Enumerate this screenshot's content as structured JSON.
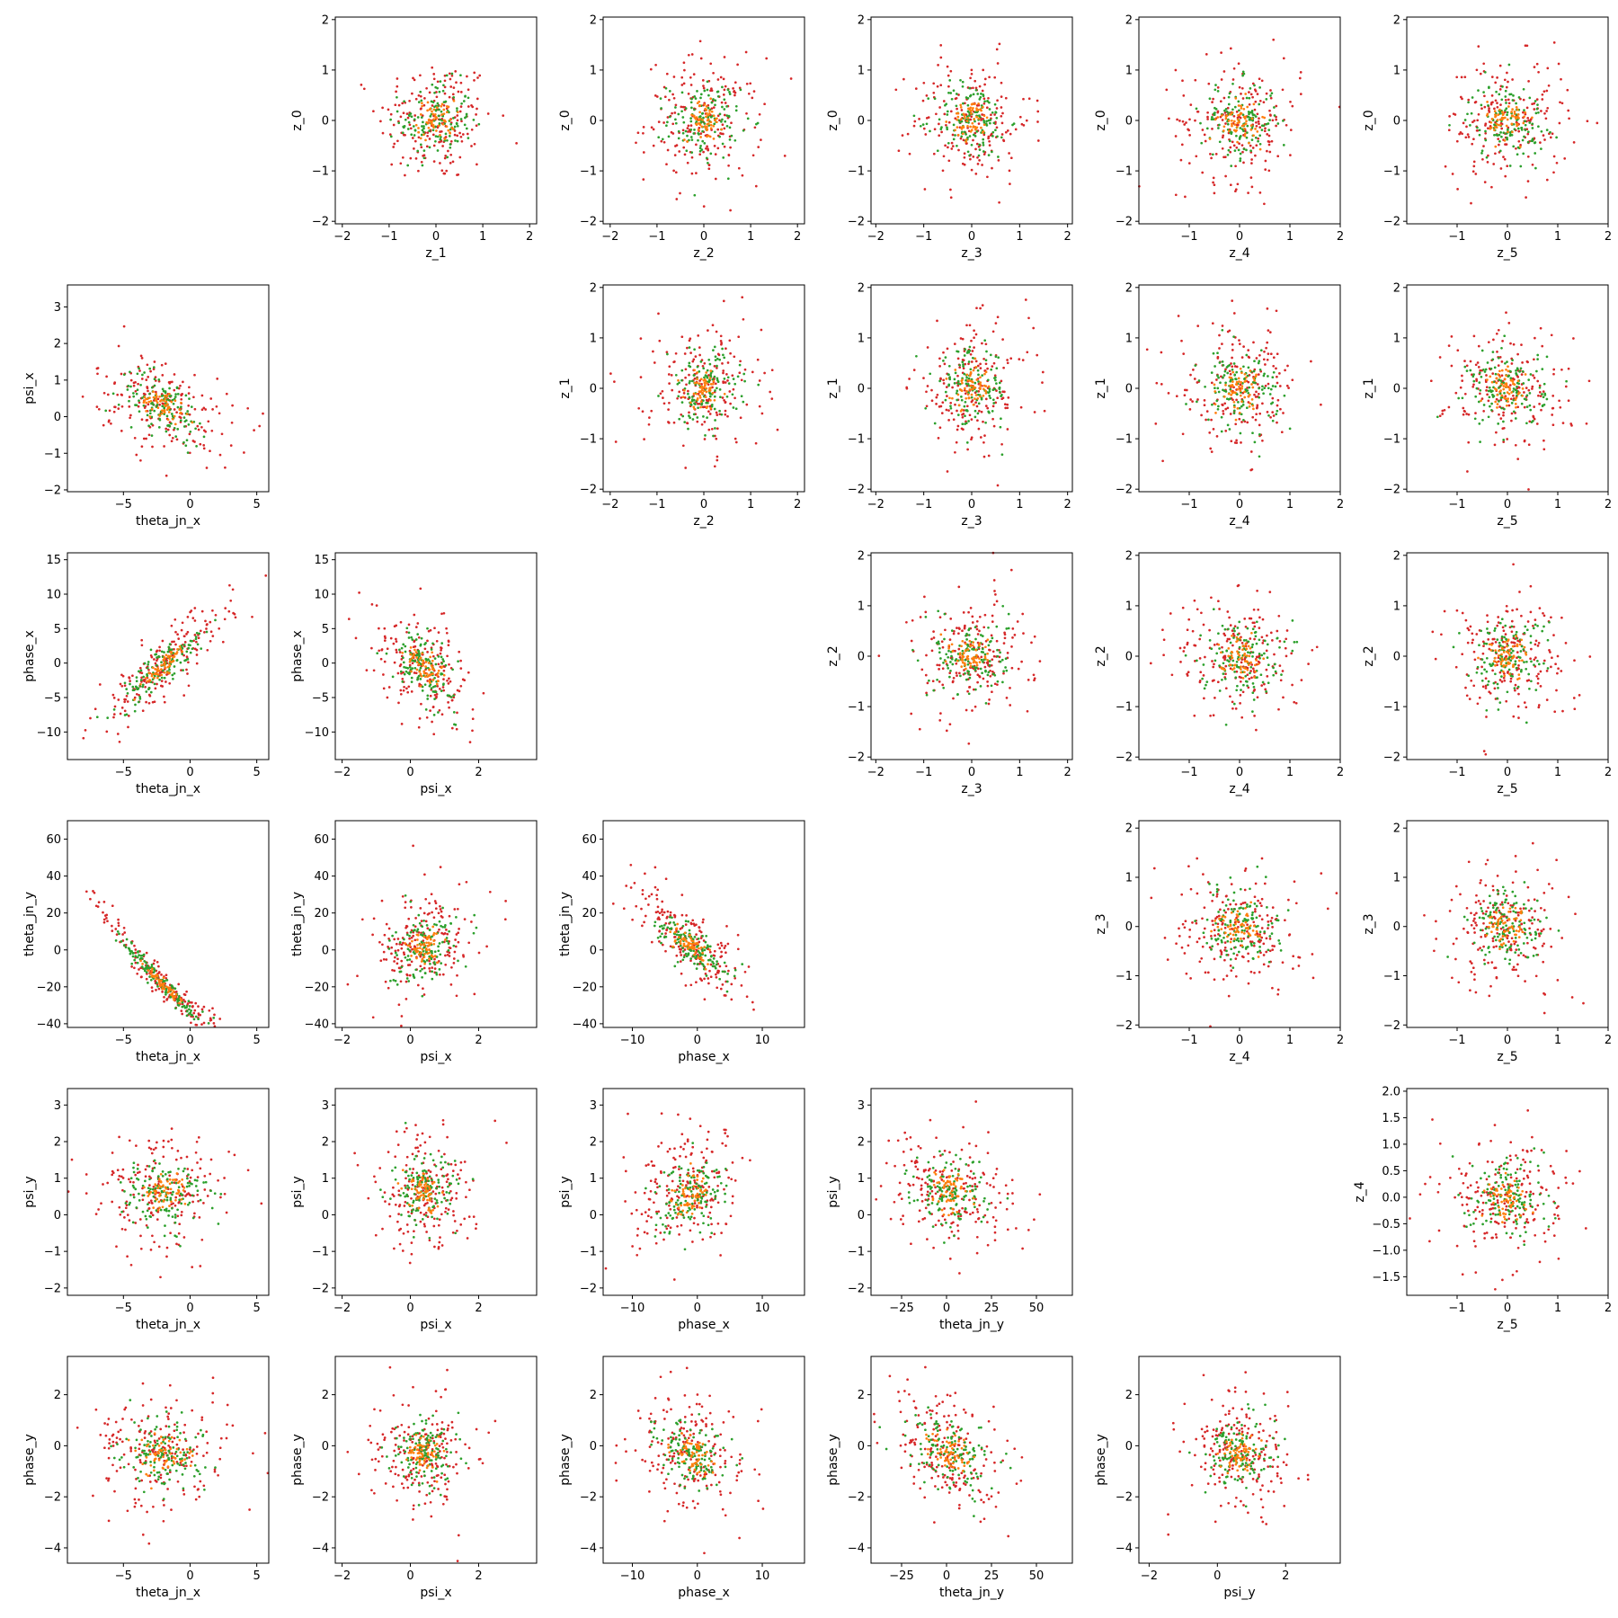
{
  "chart_data": {
    "type": "scatter",
    "layout": "corner-grid-6x6",
    "series": [
      {
        "name": "",
        "color": "#d62728",
        "n": 190,
        "spread": 1.0
      },
      {
        "name": "",
        "color": "#2ca02c",
        "n": 130,
        "spread": 0.62
      },
      {
        "name": "",
        "color": "#ff7f0e",
        "n": 60,
        "spread": 0.32
      }
    ],
    "panels": [
      {
        "row": 0,
        "col": 1,
        "xlabel": "z_1",
        "ylabel": "z_0",
        "xlim": [
          -2.15,
          2.15
        ],
        "ylim": [
          -2.05,
          2.05
        ],
        "xticks": [
          -2,
          -1,
          0,
          1,
          2
        ],
        "yticks": [
          -2,
          -1,
          0,
          1,
          2
        ],
        "pattern": "gauss"
      },
      {
        "row": 0,
        "col": 2,
        "xlabel": "z_2",
        "ylabel": "z_0",
        "xlim": [
          -2.15,
          2.15
        ],
        "ylim": [
          -2.05,
          2.05
        ],
        "xticks": [
          -2,
          -1,
          0,
          1,
          2
        ],
        "yticks": [
          -2,
          -1,
          0,
          1,
          2
        ],
        "pattern": "gauss"
      },
      {
        "row": 0,
        "col": 3,
        "xlabel": "z_3",
        "ylabel": "z_0",
        "xlim": [
          -2.1,
          2.1
        ],
        "ylim": [
          -2.05,
          2.05
        ],
        "xticks": [
          -2,
          -1,
          0,
          1,
          2
        ],
        "yticks": [
          -2,
          -1,
          0,
          1,
          2
        ],
        "pattern": "gauss"
      },
      {
        "row": 0,
        "col": 4,
        "xlabel": "z_4",
        "ylabel": "z_0",
        "xlim": [
          -2.0,
          2.0
        ],
        "ylim": [
          -2.05,
          2.05
        ],
        "xticks": [
          -1,
          0,
          1,
          2
        ],
        "yticks": [
          -2,
          -1,
          0,
          1,
          2
        ],
        "pattern": "gauss"
      },
      {
        "row": 0,
        "col": 5,
        "xlabel": "z_5",
        "ylabel": "z_0",
        "xlim": [
          -2.0,
          2.0
        ],
        "ylim": [
          -2.05,
          2.05
        ],
        "xticks": [
          -1,
          0,
          1,
          2
        ],
        "yticks": [
          -2,
          -1,
          0,
          1,
          2
        ],
        "pattern": "gauss"
      },
      {
        "row": 1,
        "col": 0,
        "xlabel": "theta_jn_x",
        "ylabel": "psi_x",
        "xlim": [
          -9.2,
          5.9
        ],
        "ylim": [
          -2.05,
          3.6
        ],
        "xticks": [
          -5,
          0,
          5
        ],
        "yticks": [
          -2,
          -1,
          0,
          1,
          2,
          3
        ],
        "pattern": "theta_psi"
      },
      {
        "row": 1,
        "col": 2,
        "xlabel": "z_2",
        "ylabel": "z_1",
        "xlim": [
          -2.15,
          2.15
        ],
        "ylim": [
          -2.05,
          2.05
        ],
        "xticks": [
          -2,
          -1,
          0,
          1,
          2
        ],
        "yticks": [
          -2,
          -1,
          0,
          1,
          2
        ],
        "pattern": "gauss"
      },
      {
        "row": 1,
        "col": 3,
        "xlabel": "z_3",
        "ylabel": "z_1",
        "xlim": [
          -2.1,
          2.1
        ],
        "ylim": [
          -2.05,
          2.05
        ],
        "xticks": [
          -2,
          -1,
          0,
          1,
          2
        ],
        "yticks": [
          -2,
          -1,
          0,
          1,
          2
        ],
        "pattern": "gauss"
      },
      {
        "row": 1,
        "col": 4,
        "xlabel": "z_4",
        "ylabel": "z_1",
        "xlim": [
          -2.0,
          2.0
        ],
        "ylim": [
          -2.05,
          2.05
        ],
        "xticks": [
          -1,
          0,
          1,
          2
        ],
        "yticks": [
          -2,
          -1,
          0,
          1,
          2
        ],
        "pattern": "gauss"
      },
      {
        "row": 1,
        "col": 5,
        "xlabel": "z_5",
        "ylabel": "z_1",
        "xlim": [
          -2.0,
          2.0
        ],
        "ylim": [
          -2.05,
          2.05
        ],
        "xticks": [
          -1,
          0,
          1,
          2
        ],
        "yticks": [
          -2,
          -1,
          0,
          1,
          2
        ],
        "pattern": "gauss"
      },
      {
        "row": 2,
        "col": 0,
        "xlabel": "theta_jn_x",
        "ylabel": "phase_x",
        "xlim": [
          -9.2,
          5.9
        ],
        "ylim": [
          -14,
          16
        ],
        "xticks": [
          -5,
          0,
          5
        ],
        "yticks": [
          -10,
          -5,
          0,
          5,
          10,
          15
        ],
        "pattern": "theta_phase"
      },
      {
        "row": 2,
        "col": 1,
        "xlabel": "psi_x",
        "ylabel": "phase_x",
        "xlim": [
          -2.2,
          3.7
        ],
        "ylim": [
          -14,
          16
        ],
        "xticks": [
          -2,
          0,
          2
        ],
        "yticks": [
          -10,
          -5,
          0,
          5,
          10,
          15
        ],
        "pattern": "psi_phase"
      },
      {
        "row": 2,
        "col": 3,
        "xlabel": "z_3",
        "ylabel": "z_2",
        "xlim": [
          -2.1,
          2.1
        ],
        "ylim": [
          -2.05,
          2.05
        ],
        "xticks": [
          -2,
          -1,
          0,
          1,
          2
        ],
        "yticks": [
          -2,
          -1,
          0,
          1,
          2
        ],
        "pattern": "gauss"
      },
      {
        "row": 2,
        "col": 4,
        "xlabel": "z_4",
        "ylabel": "z_2",
        "xlim": [
          -2.0,
          2.0
        ],
        "ylim": [
          -2.05,
          2.05
        ],
        "xticks": [
          -1,
          0,
          1,
          2
        ],
        "yticks": [
          -2,
          -1,
          0,
          1,
          2
        ],
        "pattern": "gauss"
      },
      {
        "row": 2,
        "col": 5,
        "xlabel": "z_5",
        "ylabel": "z_2",
        "xlim": [
          -2.0,
          2.0
        ],
        "ylim": [
          -2.05,
          2.05
        ],
        "xticks": [
          -1,
          0,
          1,
          2
        ],
        "yticks": [
          -2,
          -1,
          0,
          1,
          2
        ],
        "pattern": "gauss"
      },
      {
        "row": 3,
        "col": 0,
        "xlabel": "theta_jn_x",
        "ylabel": "theta_jn_y",
        "xlim": [
          -9.2,
          5.9
        ],
        "ylim": [
          -42,
          70
        ],
        "xticks": [
          -5,
          0,
          5
        ],
        "yticks": [
          -40,
          -20,
          0,
          20,
          40,
          60
        ],
        "pattern": "theta_thetay"
      },
      {
        "row": 3,
        "col": 1,
        "xlabel": "psi_x",
        "ylabel": "theta_jn_y",
        "xlim": [
          -2.2,
          3.7
        ],
        "ylim": [
          -42,
          70
        ],
        "xticks": [
          -2,
          0,
          2
        ],
        "yticks": [
          -40,
          -20,
          0,
          20,
          40,
          60
        ],
        "pattern": "psi_thetay"
      },
      {
        "row": 3,
        "col": 2,
        "xlabel": "phase_x",
        "ylabel": "theta_jn_y",
        "xlim": [
          -14.5,
          16.5
        ],
        "ylim": [
          -42,
          70
        ],
        "xticks": [
          -10,
          0,
          10
        ],
        "yticks": [
          -40,
          -20,
          0,
          20,
          40,
          60
        ],
        "pattern": "phase_thetay"
      },
      {
        "row": 3,
        "col": 4,
        "xlabel": "z_4",
        "ylabel": "z_3",
        "xlim": [
          -2.0,
          2.0
        ],
        "ylim": [
          -2.05,
          2.15
        ],
        "xticks": [
          -1,
          0,
          1,
          2
        ],
        "yticks": [
          -2,
          -1,
          0,
          1,
          2
        ],
        "pattern": "gauss"
      },
      {
        "row": 3,
        "col": 5,
        "xlabel": "z_5",
        "ylabel": "z_3",
        "xlim": [
          -2.0,
          2.0
        ],
        "ylim": [
          -2.05,
          2.15
        ],
        "xticks": [
          -1,
          0,
          1,
          2
        ],
        "yticks": [
          -2,
          -1,
          0,
          1,
          2
        ],
        "pattern": "gauss"
      },
      {
        "row": 4,
        "col": 0,
        "xlabel": "theta_jn_x",
        "ylabel": "psi_y",
        "xlim": [
          -9.2,
          5.9
        ],
        "ylim": [
          -2.2,
          3.45
        ],
        "xticks": [
          -5,
          0,
          5
        ],
        "yticks": [
          -2,
          -1,
          0,
          1,
          2,
          3
        ],
        "pattern": "theta_psiy"
      },
      {
        "row": 4,
        "col": 1,
        "xlabel": "psi_x",
        "ylabel": "psi_y",
        "xlim": [
          -2.2,
          3.7
        ],
        "ylim": [
          -2.2,
          3.45
        ],
        "xticks": [
          -2,
          0,
          2
        ],
        "yticks": [
          -2,
          -1,
          0,
          1,
          2,
          3
        ],
        "pattern": "psi_psiy"
      },
      {
        "row": 4,
        "col": 2,
        "xlabel": "phase_x",
        "ylabel": "psi_y",
        "xlim": [
          -14.5,
          16.5
        ],
        "ylim": [
          -2.2,
          3.45
        ],
        "xticks": [
          -10,
          0,
          10
        ],
        "yticks": [
          -2,
          -1,
          0,
          1,
          2,
          3
        ],
        "pattern": "phase_psiy"
      },
      {
        "row": 4,
        "col": 3,
        "xlabel": "theta_jn_y",
        "ylabel": "psi_y",
        "xlim": [
          -42,
          70
        ],
        "ylim": [
          -2.2,
          3.45
        ],
        "xticks": [
          -25,
          0,
          25,
          50
        ],
        "yticks": [
          -2,
          -1,
          0,
          1,
          2,
          3
        ],
        "pattern": "thetay_psiy"
      },
      {
        "row": 4,
        "col": 5,
        "xlabel": "z_5",
        "ylabel": "z_4",
        "xlim": [
          -2.0,
          2.0
        ],
        "ylim": [
          -1.85,
          2.05
        ],
        "xticks": [
          -1,
          0,
          1,
          2
        ],
        "yticks": [
          -1.5,
          -1.0,
          -0.5,
          0.0,
          0.5,
          1.0,
          1.5,
          2.0
        ],
        "ytickfmt": 1,
        "pattern": "gauss"
      },
      {
        "row": 5,
        "col": 0,
        "xlabel": "theta_jn_x",
        "ylabel": "phase_y",
        "xlim": [
          -9.2,
          5.9
        ],
        "ylim": [
          -4.6,
          3.5
        ],
        "xticks": [
          -5,
          0,
          5
        ],
        "yticks": [
          -4,
          -2,
          0,
          2
        ],
        "pattern": "theta_phasey"
      },
      {
        "row": 5,
        "col": 1,
        "xlabel": "psi_x",
        "ylabel": "phase_y",
        "xlim": [
          -2.2,
          3.7
        ],
        "ylim": [
          -4.6,
          3.5
        ],
        "xticks": [
          -2,
          0,
          2
        ],
        "yticks": [
          -4,
          -2,
          0,
          2
        ],
        "pattern": "psi_phasey"
      },
      {
        "row": 5,
        "col": 2,
        "xlabel": "phase_x",
        "ylabel": "phase_y",
        "xlim": [
          -14.5,
          16.5
        ],
        "ylim": [
          -4.6,
          3.5
        ],
        "xticks": [
          -10,
          0,
          10
        ],
        "yticks": [
          -4,
          -2,
          0,
          2
        ],
        "pattern": "phase_phasey"
      },
      {
        "row": 5,
        "col": 3,
        "xlabel": "theta_jn_y",
        "ylabel": "phase_y",
        "xlim": [
          -42,
          70
        ],
        "ylim": [
          -4.6,
          3.5
        ],
        "xticks": [
          -25,
          0,
          25,
          50
        ],
        "yticks": [
          -4,
          -2,
          0,
          2
        ],
        "pattern": "thetay_phasey"
      },
      {
        "row": 5,
        "col": 4,
        "xlabel": "psi_y",
        "ylabel": "phase_y",
        "xlim": [
          -2.3,
          3.6
        ],
        "ylim": [
          -4.6,
          3.5
        ],
        "xticks": [
          -2,
          0,
          2
        ],
        "yticks": [
          -4,
          -2,
          0,
          2
        ],
        "pattern": "psiy_phasey"
      }
    ]
  }
}
